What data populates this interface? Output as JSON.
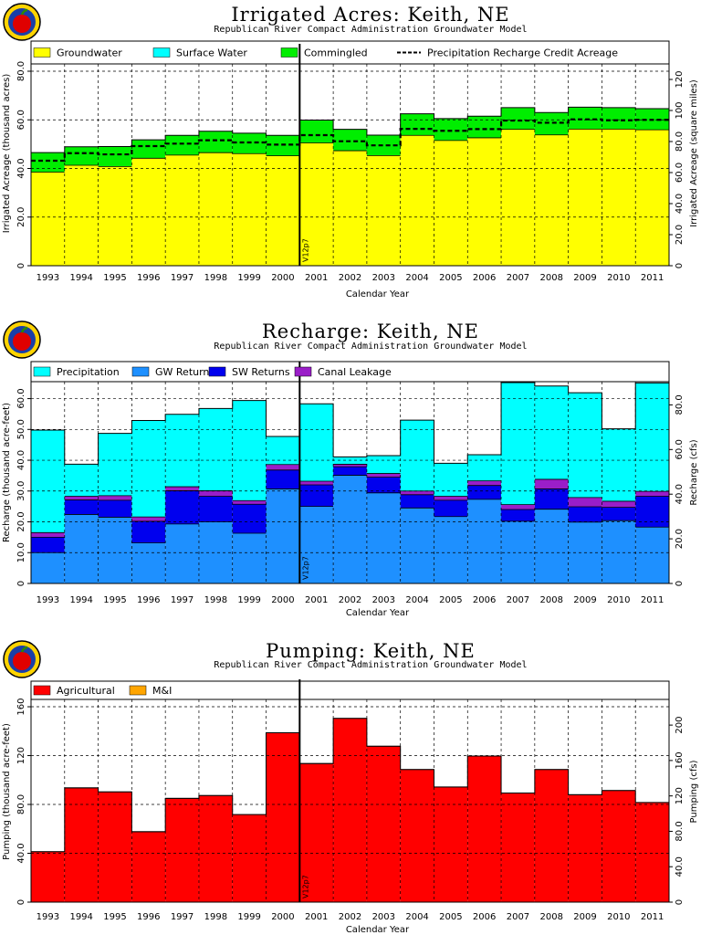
{
  "years": [
    "1993",
    "1994",
    "1995",
    "1996",
    "1997",
    "1998",
    "1999",
    "2000",
    "2001",
    "2002",
    "2003",
    "2004",
    "2005",
    "2006",
    "2007",
    "2008",
    "2009",
    "2010",
    "2011"
  ],
  "xlabel": "Calendar Year",
  "marker_label": "V12p7",
  "subtitle": "Republican River Compact Administration Groundwater Model",
  "colors": {
    "groundwater": "#ffff00",
    "surface_water": "#00ffff",
    "commingled": "#00ee00",
    "precipitation": "#00ffff",
    "gw_returns": "#1e90ff",
    "sw_returns": "#0000ee",
    "canal_leakage": "#9a1ec8",
    "agricultural": "#ff0000",
    "mi": "#ffa500"
  },
  "chart_data": [
    {
      "type": "bar",
      "stacked": true,
      "title": "Irrigated Acres: Keith, NE",
      "subtitle": "Republican River Compact Administration Groundwater Model",
      "ylabel": "Irrigated Acreage (thousand acres)",
      "y2label": "Irrigated Acreage (square miles)",
      "xlabel": "Calendar Year",
      "ylim": [
        0,
        83
      ],
      "yticks": [
        0,
        20,
        40,
        60,
        80
      ],
      "y2lim": [
        0,
        130
      ],
      "y2ticks": [
        0,
        20,
        40,
        60,
        80,
        100,
        120
      ],
      "categories": [
        "1993",
        "1994",
        "1995",
        "1996",
        "1997",
        "1998",
        "1999",
        "2000",
        "2001",
        "2002",
        "2003",
        "2004",
        "2005",
        "2006",
        "2007",
        "2008",
        "2009",
        "2010",
        "2011"
      ],
      "series": [
        {
          "name": "Groundwater",
          "values": [
            38.5,
            41.3,
            40.8,
            44.2,
            45.5,
            46.5,
            46.1,
            45.2,
            50.5,
            47.3,
            45.3,
            53.6,
            51.5,
            52.6,
            56.1,
            53.8,
            56.2,
            56.2,
            55.9
          ]
        },
        {
          "name": "Surface Water",
          "values": [
            0,
            0,
            0,
            0,
            0,
            0,
            0,
            0,
            0,
            0,
            0,
            0,
            0,
            0,
            0,
            0,
            0,
            0,
            0
          ]
        },
        {
          "name": "Commingled",
          "values": [
            8.0,
            7.6,
            8.2,
            7.6,
            8.1,
            8.8,
            8.4,
            8.4,
            9.4,
            8.8,
            8.4,
            8.9,
            9.0,
            8.9,
            8.9,
            9.2,
            9.0,
            8.8,
            8.7
          ]
        }
      ],
      "lines": [
        {
          "name": "Precipitation Recharge Credit Acreage",
          "values": [
            43.2,
            46.3,
            45.8,
            49.2,
            50.2,
            51.6,
            50.7,
            49.8,
            53.7,
            51.2,
            49.5,
            56.3,
            55.5,
            56.2,
            59.7,
            58.8,
            60.2,
            59.8,
            60.0
          ]
        }
      ],
      "legend": [
        "Groundwater",
        "Surface Water",
        "Commingled",
        "Precipitation Recharge Credit Acreage"
      ]
    },
    {
      "type": "bar",
      "stacked": true,
      "title": "Recharge: Keith, NE",
      "subtitle": "Republican River Compact Administration Groundwater Model",
      "ylabel": "Recharge (thousand acre-feet)",
      "y2label": "Recharge (cfs)",
      "xlabel": "Calendar Year",
      "ylim": [
        0,
        65.5
      ],
      "yticks": [
        0,
        10,
        20,
        30,
        40,
        50,
        60
      ],
      "ytick_labels": [
        "0",
        "10.0",
        "20.0",
        "30.0",
        "40.0",
        "50.0",
        "60.0"
      ],
      "y2lim": [
        0,
        90.4
      ],
      "y2ticks": [
        0,
        20,
        40,
        60,
        80
      ],
      "categories": [
        "1993",
        "1994",
        "1995",
        "1996",
        "1997",
        "1998",
        "1999",
        "2000",
        "2001",
        "2002",
        "2003",
        "2004",
        "2005",
        "2006",
        "2007",
        "2008",
        "2009",
        "2010",
        "2011"
      ],
      "series": [
        {
          "name": "GW Returns",
          "values": [
            10.0,
            22.4,
            21.5,
            13.2,
            19.3,
            20.0,
            16.3,
            30.7,
            25.0,
            35.1,
            29.4,
            24.5,
            21.7,
            27.3,
            20.2,
            24.1,
            19.9,
            20.4,
            18.3
          ]
        },
        {
          "name": "SW Returns",
          "values": [
            5.0,
            4.7,
            5.5,
            7.0,
            10.8,
            8.3,
            9.4,
            6.1,
            7.0,
            2.8,
            5.1,
            4.3,
            5.3,
            4.5,
            3.8,
            6.6,
            5.0,
            4.3,
            10.0
          ]
        },
        {
          "name": "Canal Leakage",
          "values": [
            1.5,
            1.2,
            1.5,
            1.4,
            1.3,
            1.8,
            1.2,
            1.8,
            1.2,
            0.8,
            1.2,
            1.2,
            1.3,
            1.5,
            1.6,
            3.1,
            3.0,
            2.0,
            1.6
          ]
        },
        {
          "name": "Precipitation",
          "values": [
            33.3,
            10.4,
            20.2,
            31.3,
            23.5,
            26.7,
            32.5,
            9.1,
            25.1,
            2.4,
            5.8,
            23.0,
            10.7,
            8.5,
            39.6,
            30.3,
            34.0,
            23.5,
            35.2
          ]
        }
      ],
      "legend": [
        "Precipitation",
        "GW Returns",
        "SW Returns",
        "Canal Leakage"
      ]
    },
    {
      "type": "bar",
      "stacked": true,
      "title": "Pumping: Keith, NE",
      "subtitle": "Republican River Compact Administration Groundwater Model",
      "ylabel": "Pumping (thousand acre-feet)",
      "y2label": "Pumping (cfs)",
      "xlabel": "Calendar Year",
      "ylim": [
        0,
        166
      ],
      "yticks": [
        0,
        40,
        80,
        120,
        160
      ],
      "y2lim": [
        0,
        229
      ],
      "y2ticks": [
        0,
        40,
        80,
        120,
        160,
        200
      ],
      "y2tick_labels": [
        "0",
        "40.0",
        "80.0",
        "120",
        "160",
        "200"
      ],
      "categories": [
        "1993",
        "1994",
        "1995",
        "1996",
        "1997",
        "1998",
        "1999",
        "2000",
        "2001",
        "2002",
        "2003",
        "2004",
        "2005",
        "2006",
        "2007",
        "2008",
        "2009",
        "2010",
        "2011"
      ],
      "series": [
        {
          "name": "Agricultural",
          "values": [
            41.3,
            93.6,
            90.3,
            57.7,
            85.0,
            87.3,
            71.7,
            138.7,
            113.5,
            150.5,
            127.7,
            108.6,
            94.3,
            119.6,
            89.4,
            108.6,
            88.0,
            91.4,
            81.6
          ]
        },
        {
          "name": "M&I",
          "values": [
            0,
            0,
            0,
            0,
            0,
            0,
            0,
            0,
            0,
            0,
            0,
            0,
            0,
            0,
            0,
            0,
            0,
            0,
            0
          ]
        }
      ],
      "legend": [
        "Agricultural",
        "M&I"
      ]
    }
  ]
}
